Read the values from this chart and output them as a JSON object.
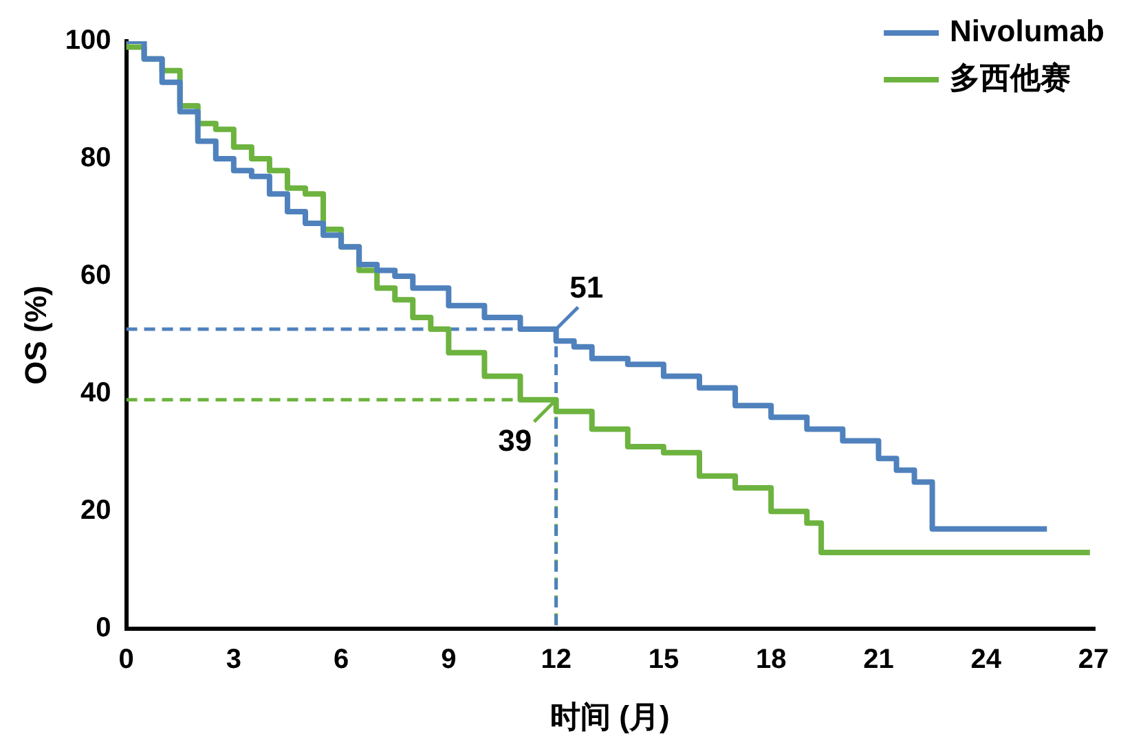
{
  "chart_data": {
    "type": "step",
    "xlabel": "时间 (月)",
    "ylabel": "OS (%)",
    "xlim": [
      0,
      27
    ],
    "xticks": [
      0,
      3,
      6,
      9,
      12,
      15,
      18,
      21,
      24,
      27
    ],
    "ylim": [
      0,
      100
    ],
    "yticks": [
      0,
      20,
      40,
      60,
      80,
      100
    ],
    "grid": false,
    "legend": "top right",
    "marker": "none",
    "series": [
      {
        "name": "Nivolumab",
        "color": "#4f81bd",
        "x": [
          0,
          0.5,
          1,
          1.5,
          2,
          2.5,
          3,
          3.5,
          4,
          4.5,
          5,
          5.5,
          6,
          6.5,
          7,
          7.5,
          8,
          9,
          10,
          11,
          12,
          12.5,
          13,
          14,
          15,
          16,
          17,
          18,
          19,
          20,
          21,
          21.5,
          22,
          22.5,
          24.4,
          25.7
        ],
        "values": [
          100,
          100,
          97,
          93,
          88,
          83,
          80,
          78,
          77,
          74,
          71,
          69,
          67,
          65,
          62,
          61,
          60,
          58,
          55,
          53,
          51,
          49,
          48,
          46,
          45,
          43,
          41,
          38,
          36,
          34,
          32,
          29,
          27,
          25,
          17,
          17
        ]
      },
      {
        "name": "多西他赛",
        "color": "#6db33f",
        "x": [
          0,
          0.5,
          1,
          1.5,
          2,
          2.5,
          3,
          3.5,
          4,
          4.5,
          5,
          5.5,
          6,
          6.5,
          7,
          7.5,
          8,
          8.5,
          9,
          10,
          11,
          12,
          13,
          14,
          15,
          16,
          17,
          18,
          19,
          19.4,
          23.3,
          26.9
        ],
        "values": [
          100,
          99,
          97,
          95,
          89,
          86,
          85,
          82,
          80,
          78,
          75,
          74,
          68,
          65,
          61,
          58,
          56,
          53,
          51,
          47,
          43,
          39,
          37,
          34,
          31,
          30,
          26,
          24,
          20,
          18,
          13,
          13
        ]
      },
      {
        "type": "line",
        "line_style": "dashed",
        "color": "#4f81bd",
        "x": [
          0,
          12,
          12
        ],
        "values": [
          51,
          51,
          0
        ]
      },
      {
        "type": "line",
        "line_style": "dashed",
        "color": "#6db33f",
        "x": [
          0,
          12,
          12
        ],
        "values": [
          39,
          39,
          0
        ]
      }
    ],
    "annotations": [
      {
        "text": "51",
        "x": 12,
        "y": 51
      },
      {
        "text": "39",
        "x": 12,
        "y": 39
      }
    ]
  }
}
